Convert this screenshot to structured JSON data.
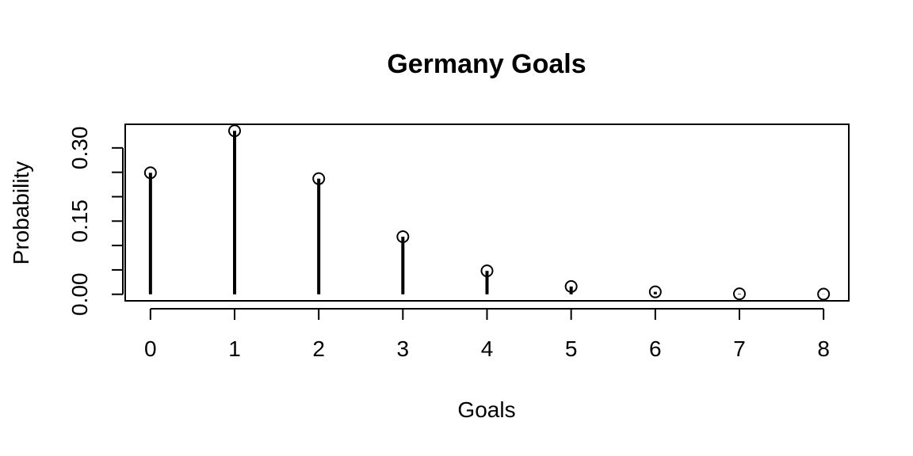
{
  "chart_data": {
    "type": "bar",
    "style": "vertical-lines-with-open-circles",
    "title": "Germany Goals",
    "xlabel": "Goals",
    "ylabel": "Probability",
    "x": [
      0,
      1,
      2,
      3,
      4,
      5,
      6,
      7,
      8
    ],
    "values": [
      0.249,
      0.335,
      0.237,
      0.118,
      0.048,
      0.016,
      0.005,
      0.001,
      0.0003
    ],
    "x_ticks": [
      "0",
      "1",
      "2",
      "3",
      "4",
      "5",
      "6",
      "7",
      "8"
    ],
    "y_tick_values": [
      0.0,
      0.05,
      0.1,
      0.15,
      0.2,
      0.25,
      0.3
    ],
    "y_tick_labels": [
      "0.00",
      "",
      "",
      "0.15",
      "",
      "",
      "0.30"
    ],
    "xlim": [
      -0.3,
      8.3
    ],
    "ylim": [
      -0.0134,
      0.3484
    ],
    "grid": false,
    "legend": "none",
    "color": "#000000"
  }
}
